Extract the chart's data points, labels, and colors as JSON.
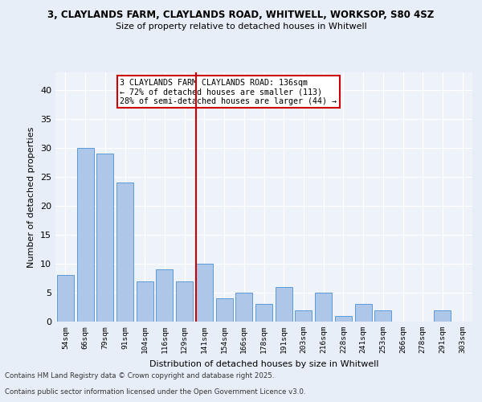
{
  "title1": "3, CLAYLANDS FARM, CLAYLANDS ROAD, WHITWELL, WORKSOP, S80 4SZ",
  "title2": "Size of property relative to detached houses in Whitwell",
  "xlabel": "Distribution of detached houses by size in Whitwell",
  "ylabel": "Number of detached properties",
  "bar_labels": [
    "54sqm",
    "66sqm",
    "79sqm",
    "91sqm",
    "104sqm",
    "116sqm",
    "129sqm",
    "141sqm",
    "154sqm",
    "166sqm",
    "178sqm",
    "191sqm",
    "203sqm",
    "216sqm",
    "228sqm",
    "241sqm",
    "253sqm",
    "266sqm",
    "278sqm",
    "291sqm",
    "303sqm"
  ],
  "bar_values": [
    8,
    30,
    29,
    24,
    7,
    9,
    7,
    10,
    4,
    5,
    3,
    6,
    2,
    5,
    1,
    3,
    2,
    0,
    0,
    2,
    0
  ],
  "bar_color": "#aec6e8",
  "bar_edgecolor": "#5b9bd5",
  "vline_index": 7,
  "property_label": "3 CLAYLANDS FARM CLAYLANDS ROAD: 136sqm",
  "annotation_line1": "← 72% of detached houses are smaller (113)",
  "annotation_line2": "28% of semi-detached houses are larger (44) →",
  "vline_color": "#cc0000",
  "annotation_box_edgecolor": "#cc0000",
  "ylim": [
    0,
    43
  ],
  "yticks": [
    0,
    5,
    10,
    15,
    20,
    25,
    30,
    35,
    40
  ],
  "footer1": "Contains HM Land Registry data © Crown copyright and database right 2025.",
  "footer2": "Contains public sector information licensed under the Open Government Licence v3.0.",
  "bg_color": "#e8eef7",
  "plot_bg_color": "#eef2f9"
}
